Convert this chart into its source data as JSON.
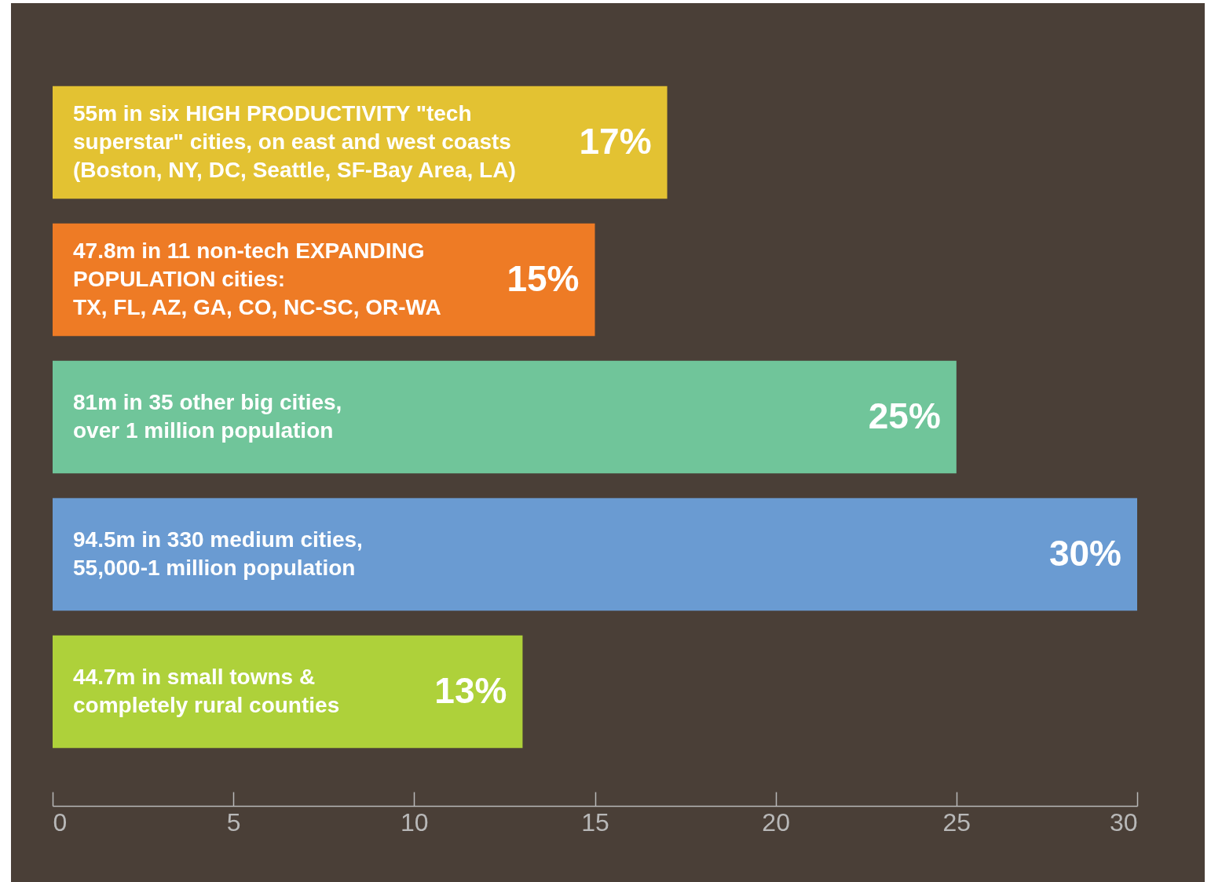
{
  "chart_data": {
    "type": "bar",
    "orientation": "horizontal",
    "categories": [
      "55m in six HIGH PRODUCTIVITY \"tech\nsuperstar\" cities, on east and west coasts\n(Boston, NY, DC, Seattle, SF-Bay Area, LA)",
      "47.8m in 11 non-tech EXPANDING\nPOPULATION cities:\nTX, FL, AZ, GA, CO, NC-SC, OR-WA",
      "81m in 35 other big cities,\nover 1 million population",
      "94.5m in 330 medium cities,\n55,000-1 million population",
      "44.7m in small towns &\ncompletely rural counties"
    ],
    "values": [
      17,
      15,
      25,
      30,
      13
    ],
    "colors": [
      "#e3c232",
      "#ee7b25",
      "#70c59a",
      "#6a9bd2",
      "#aed13a"
    ],
    "value_labels": [
      "17%",
      "15%",
      "25%",
      "30%",
      "13%"
    ],
    "xlim": [
      0,
      30
    ],
    "xticks": [
      0,
      5,
      10,
      15,
      20,
      25,
      30
    ],
    "grid": false
  }
}
